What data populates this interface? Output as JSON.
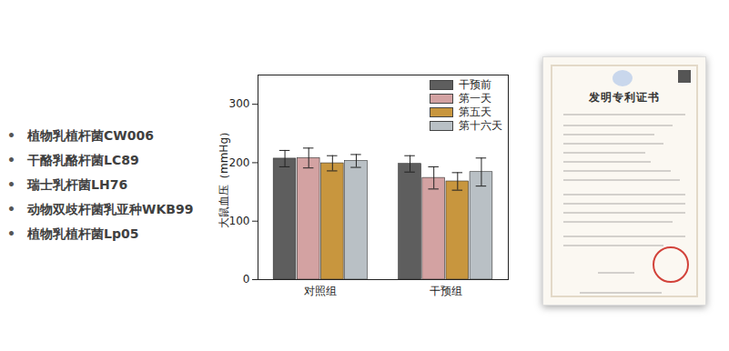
{
  "chart_data": {
    "type": "bar",
    "categories": [
      "对照组",
      "干预组"
    ],
    "series": [
      {
        "name": "干预前",
        "color": "#5e5e5e",
        "values": [
          207,
          198
        ],
        "errors": [
          14,
          14
        ]
      },
      {
        "name": "第一天",
        "color": "#d3a2a2",
        "values": [
          208,
          174
        ],
        "errors": [
          17,
          19
        ]
      },
      {
        "name": "第五天",
        "color": "#c8963e",
        "values": [
          199,
          168
        ],
        "errors": [
          13,
          15
        ]
      },
      {
        "name": "第十六天",
        "color": "#b9c0c5",
        "values": [
          203,
          184
        ],
        "errors": [
          11,
          24
        ]
      }
    ],
    "y_label": "大鼠血压（mmHg）",
    "ylim": [
      0,
      350
    ],
    "yticks": [
      0,
      100,
      200,
      300
    ],
    "legend": "top-right",
    "grid": false
  },
  "bullet_list": [
    "植物乳植杆菌CW006",
    "干酪乳酪杆菌LC89",
    "瑞士乳杆菌LH76",
    "动物双歧杆菌乳亚种WKB99",
    "植物乳植杆菌Lp05"
  ],
  "certificate": {
    "title": "发明专利证书"
  }
}
